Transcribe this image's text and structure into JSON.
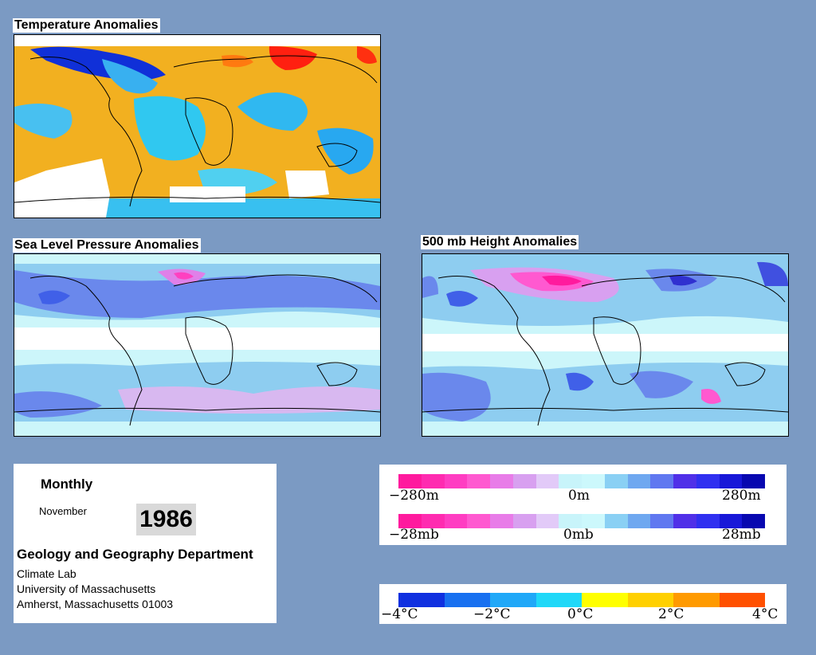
{
  "titles": {
    "temperature": "Temperature Anomalies",
    "slp": "Sea Level Pressure Anomalies",
    "height": "500 mb Height Anomalies"
  },
  "info": {
    "period": "Monthly",
    "month": "November",
    "year": "1986",
    "department": "Geology and Geography Department",
    "lab": "Climate Lab",
    "university": "University of Massachusetts",
    "address": "Amherst, Massachusetts 01003"
  },
  "legend_height": {
    "labels": [
      "−280m",
      "0m",
      "280m"
    ],
    "colors": [
      "#ff1a9e",
      "#ff2bb0",
      "#ff3dc2",
      "#ff59d0",
      "#e87ce8",
      "#d8a0f0",
      "#e2caf8",
      "#c8f4fa",
      "#ccf8fc",
      "#8ad0f4",
      "#6fa8f0",
      "#6078f0",
      "#5030e8",
      "#3030f0",
      "#1818d8",
      "#0808b0"
    ]
  },
  "legend_slp": {
    "labels": [
      "−28mb",
      "0mb",
      "28mb"
    ],
    "colors": [
      "#ff1a9e",
      "#ff2bb0",
      "#ff3dc2",
      "#ff59d0",
      "#e87ce8",
      "#d8a0f0",
      "#e2caf8",
      "#c8f4fa",
      "#ccf8fc",
      "#8ad0f4",
      "#6fa8f0",
      "#6078f0",
      "#5030e8",
      "#3030f0",
      "#1818d8",
      "#0808b0"
    ]
  },
  "legend_temp": {
    "labels": [
      "−4°C",
      "−2°C",
      "0°C",
      "2°C",
      "4°C"
    ],
    "colors": [
      "#1030e0",
      "#1870f0",
      "#20a8f8",
      "#20d8f8",
      "#ffff00",
      "#ffd000",
      "#ff9a00",
      "#ff5000"
    ]
  }
}
